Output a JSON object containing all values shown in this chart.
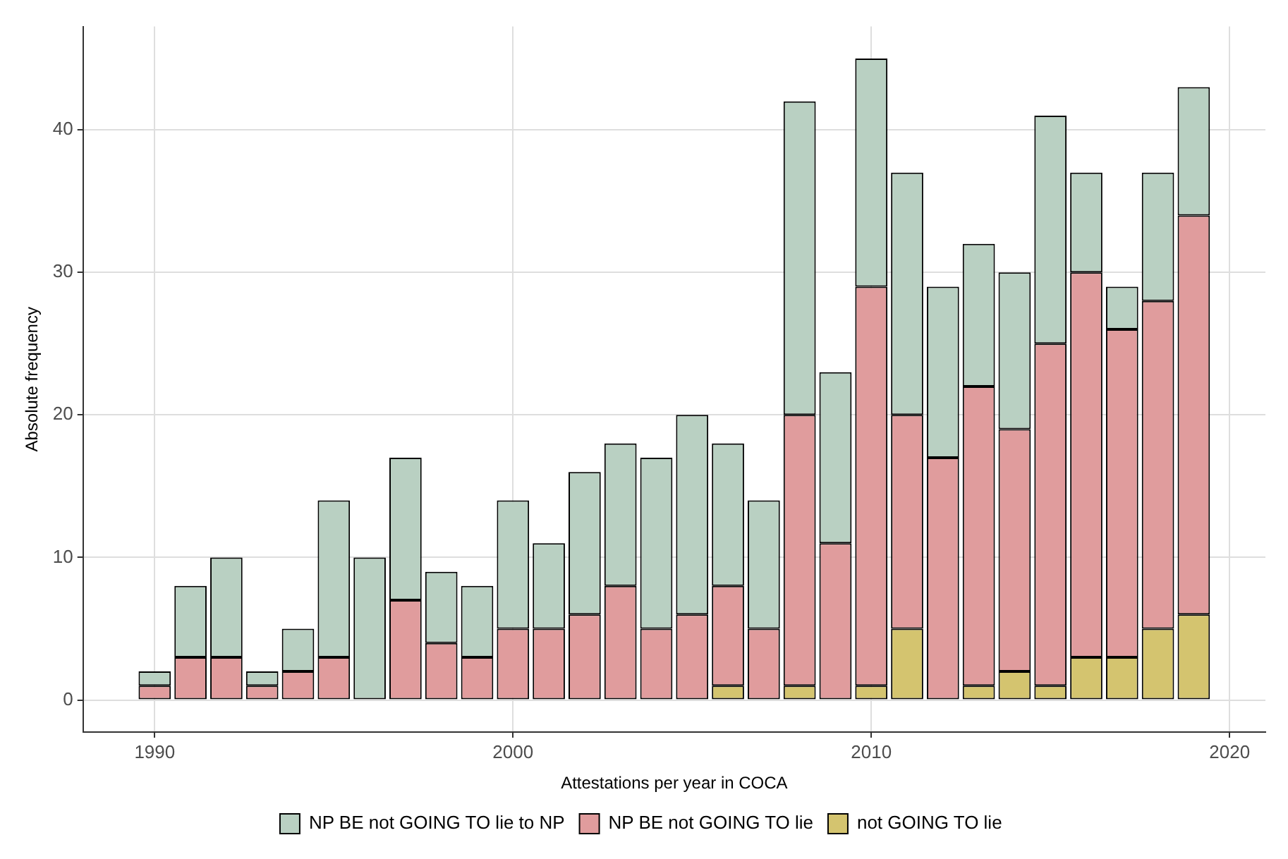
{
  "chart_data": {
    "type": "bar",
    "stacked": true,
    "xlabel": "Attestations per year in COCA",
    "ylabel": "Absolute frequency",
    "x": [
      1990,
      1991,
      1992,
      1993,
      1994,
      1995,
      1996,
      1997,
      1998,
      1999,
      2000,
      2001,
      2002,
      2003,
      2004,
      2005,
      2006,
      2007,
      2008,
      2009,
      2010,
      2011,
      2012,
      2013,
      2014,
      2015,
      2016,
      2017,
      2018,
      2019
    ],
    "series": [
      {
        "name": "not GOING TO lie",
        "color": "#d4c46f",
        "values": [
          0,
          0,
          0,
          0,
          0,
          0,
          0,
          0,
          0,
          0,
          0,
          0,
          0,
          0,
          0,
          0,
          1,
          0,
          1,
          0,
          1,
          5,
          0,
          1,
          2,
          1,
          3,
          3,
          5,
          6
        ]
      },
      {
        "name": "NP BE not GOING TO lie",
        "color": "#e09c9d",
        "values": [
          1,
          3,
          3,
          1,
          2,
          3,
          0,
          7,
          4,
          3,
          5,
          5,
          6,
          8,
          5,
          6,
          7,
          5,
          19,
          11,
          28,
          15,
          17,
          21,
          17,
          24,
          27,
          23,
          23,
          28
        ]
      },
      {
        "name": "NP BE not GOING TO lie to NP",
        "color": "#b9d0c2",
        "values": [
          1,
          5,
          7,
          1,
          3,
          11,
          10,
          10,
          5,
          5,
          9,
          6,
          10,
          10,
          12,
          14,
          10,
          9,
          22,
          12,
          16,
          17,
          12,
          10,
          11,
          16,
          7,
          3,
          9,
          9
        ]
      }
    ],
    "xlim": [
      1988,
      2021
    ],
    "xticks": [
      1990,
      2000,
      2010,
      2020
    ],
    "ylim": [
      -2.25,
      47.25
    ],
    "yticks": [
      0,
      10,
      20,
      30,
      40
    ],
    "grid": true,
    "legend": "bottom"
  }
}
